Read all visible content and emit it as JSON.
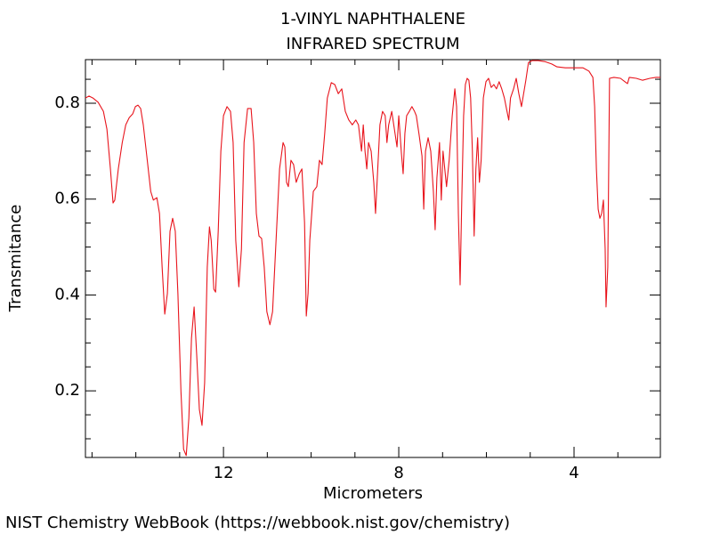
{
  "chart_data": {
    "type": "line",
    "title": "1-VINYL NAPHTHALENE",
    "subtitle": "INFRARED SPECTRUM",
    "x_label": "Micrometers",
    "y_label": "Transmitance",
    "source": "NIST Chemistry WebBook (https://webbook.nist.gov/chemistry)",
    "color": "#e8141c",
    "xlim": [
      15.15,
      2.03
    ],
    "ylim": [
      0.061,
      0.891
    ],
    "xticks": [
      12,
      8,
      4
    ],
    "yticks": [
      0.2,
      0.4,
      0.6,
      0.8
    ],
    "xminorticks": [
      15,
      14,
      13,
      11,
      10,
      9,
      7,
      6,
      5,
      3
    ],
    "yminorticks": [
      0.1,
      0.15,
      0.25,
      0.3,
      0.35,
      0.45,
      0.5,
      0.55,
      0.65,
      0.7,
      0.75,
      0.85
    ],
    "x": [
      15.15,
      15.07,
      14.98,
      14.86,
      14.74,
      14.66,
      14.58,
      14.52,
      14.48,
      14.4,
      14.31,
      14.23,
      14.15,
      14.07,
      14.01,
      13.95,
      13.89,
      13.83,
      13.75,
      13.66,
      13.6,
      13.52,
      13.46,
      13.4,
      13.34,
      13.28,
      13.22,
      13.16,
      13.1,
      13.04,
      12.97,
      12.91,
      12.85,
      12.79,
      12.73,
      12.67,
      12.61,
      12.55,
      12.49,
      12.43,
      12.37,
      12.32,
      12.28,
      12.22,
      12.18,
      12.12,
      12.06,
      12,
      11.92,
      11.84,
      11.78,
      11.72,
      11.65,
      11.59,
      11.53,
      11.45,
      11.37,
      11.31,
      11.25,
      11.19,
      11.13,
      11.07,
      11.01,
      10.94,
      10.88,
      10.8,
      10.72,
      10.64,
      10.6,
      10.56,
      10.52,
      10.46,
      10.4,
      10.34,
      10.27,
      10.21,
      10.15,
      10.11,
      10.07,
      10.03,
      9.95,
      9.87,
      9.81,
      9.75,
      9.69,
      9.63,
      9.54,
      9.46,
      9.38,
      9.3,
      9.22,
      9.14,
      9.06,
      8.98,
      8.92,
      8.85,
      8.81,
      8.77,
      8.73,
      8.69,
      8.63,
      8.57,
      8.53,
      8.49,
      8.43,
      8.37,
      8.31,
      8.27,
      8.23,
      8.16,
      8.1,
      8.04,
      8,
      7.94,
      7.9,
      7.86,
      7.82,
      7.76,
      7.7,
      7.64,
      7.6,
      7.54,
      7.47,
      7.43,
      7.39,
      7.33,
      7.27,
      7.21,
      7.17,
      7.13,
      7.07,
      7.03,
      6.99,
      6.95,
      6.91,
      6.85,
      6.78,
      6.72,
      6.68,
      6.64,
      6.6,
      6.56,
      6.52,
      6.48,
      6.44,
      6.4,
      6.36,
      6.32,
      6.28,
      6.24,
      6.2,
      6.16,
      6.12,
      6.07,
      6.01,
      5.95,
      5.89,
      5.83,
      5.77,
      5.71,
      5.65,
      5.59,
      5.53,
      5.49,
      5.45,
      5.38,
      5.32,
      5.26,
      5.2,
      5.16,
      5.1,
      5.04,
      4.96,
      4.82,
      4.67,
      4.51,
      4.39,
      4.2,
      4,
      3.8,
      3.66,
      3.57,
      3.53,
      3.49,
      3.45,
      3.41,
      3.37,
      3.33,
      3.29,
      3.27,
      3.23,
      3.19,
      3.09,
      2.94,
      2.84,
      2.78,
      2.74,
      2.58,
      2.44,
      2.27,
      2.13,
      2.03
    ],
    "values": [
      0.811,
      0.815,
      0.811,
      0.802,
      0.783,
      0.746,
      0.663,
      0.592,
      0.598,
      0.663,
      0.718,
      0.755,
      0.77,
      0.778,
      0.793,
      0.796,
      0.789,
      0.755,
      0.69,
      0.616,
      0.598,
      0.603,
      0.57,
      0.458,
      0.36,
      0.403,
      0.533,
      0.56,
      0.533,
      0.403,
      0.198,
      0.078,
      0.065,
      0.143,
      0.31,
      0.375,
      0.273,
      0.161,
      0.128,
      0.217,
      0.458,
      0.542,
      0.514,
      0.412,
      0.406,
      0.533,
      0.7,
      0.774,
      0.793,
      0.783,
      0.718,
      0.514,
      0.417,
      0.496,
      0.718,
      0.789,
      0.789,
      0.718,
      0.57,
      0.523,
      0.518,
      0.458,
      0.365,
      0.338,
      0.365,
      0.514,
      0.663,
      0.718,
      0.709,
      0.635,
      0.626,
      0.681,
      0.672,
      0.635,
      0.653,
      0.663,
      0.551,
      0.356,
      0.403,
      0.514,
      0.616,
      0.626,
      0.681,
      0.672,
      0.737,
      0.811,
      0.843,
      0.839,
      0.82,
      0.83,
      0.783,
      0.765,
      0.755,
      0.765,
      0.755,
      0.7,
      0.755,
      0.7,
      0.663,
      0.718,
      0.7,
      0.635,
      0.57,
      0.644,
      0.755,
      0.783,
      0.774,
      0.718,
      0.755,
      0.783,
      0.746,
      0.709,
      0.774,
      0.696,
      0.653,
      0.737,
      0.774,
      0.783,
      0.793,
      0.783,
      0.774,
      0.737,
      0.69,
      0.579,
      0.7,
      0.728,
      0.7,
      0.616,
      0.536,
      0.644,
      0.718,
      0.598,
      0.7,
      0.663,
      0.626,
      0.681,
      0.774,
      0.83,
      0.793,
      0.57,
      0.421,
      0.607,
      0.774,
      0.839,
      0.852,
      0.848,
      0.811,
      0.7,
      0.523,
      0.663,
      0.728,
      0.635,
      0.681,
      0.811,
      0.845,
      0.852,
      0.833,
      0.839,
      0.83,
      0.845,
      0.83,
      0.811,
      0.783,
      0.765,
      0.811,
      0.83,
      0.852,
      0.82,
      0.793,
      0.815,
      0.848,
      0.885,
      0.889,
      0.889,
      0.887,
      0.882,
      0.876,
      0.874,
      0.874,
      0.874,
      0.867,
      0.854,
      0.793,
      0.663,
      0.579,
      0.56,
      0.57,
      0.598,
      0.496,
      0.375,
      0.458,
      0.852,
      0.854,
      0.852,
      0.845,
      0.841,
      0.854,
      0.852,
      0.848,
      0.852,
      0.854,
      0.854
    ]
  }
}
